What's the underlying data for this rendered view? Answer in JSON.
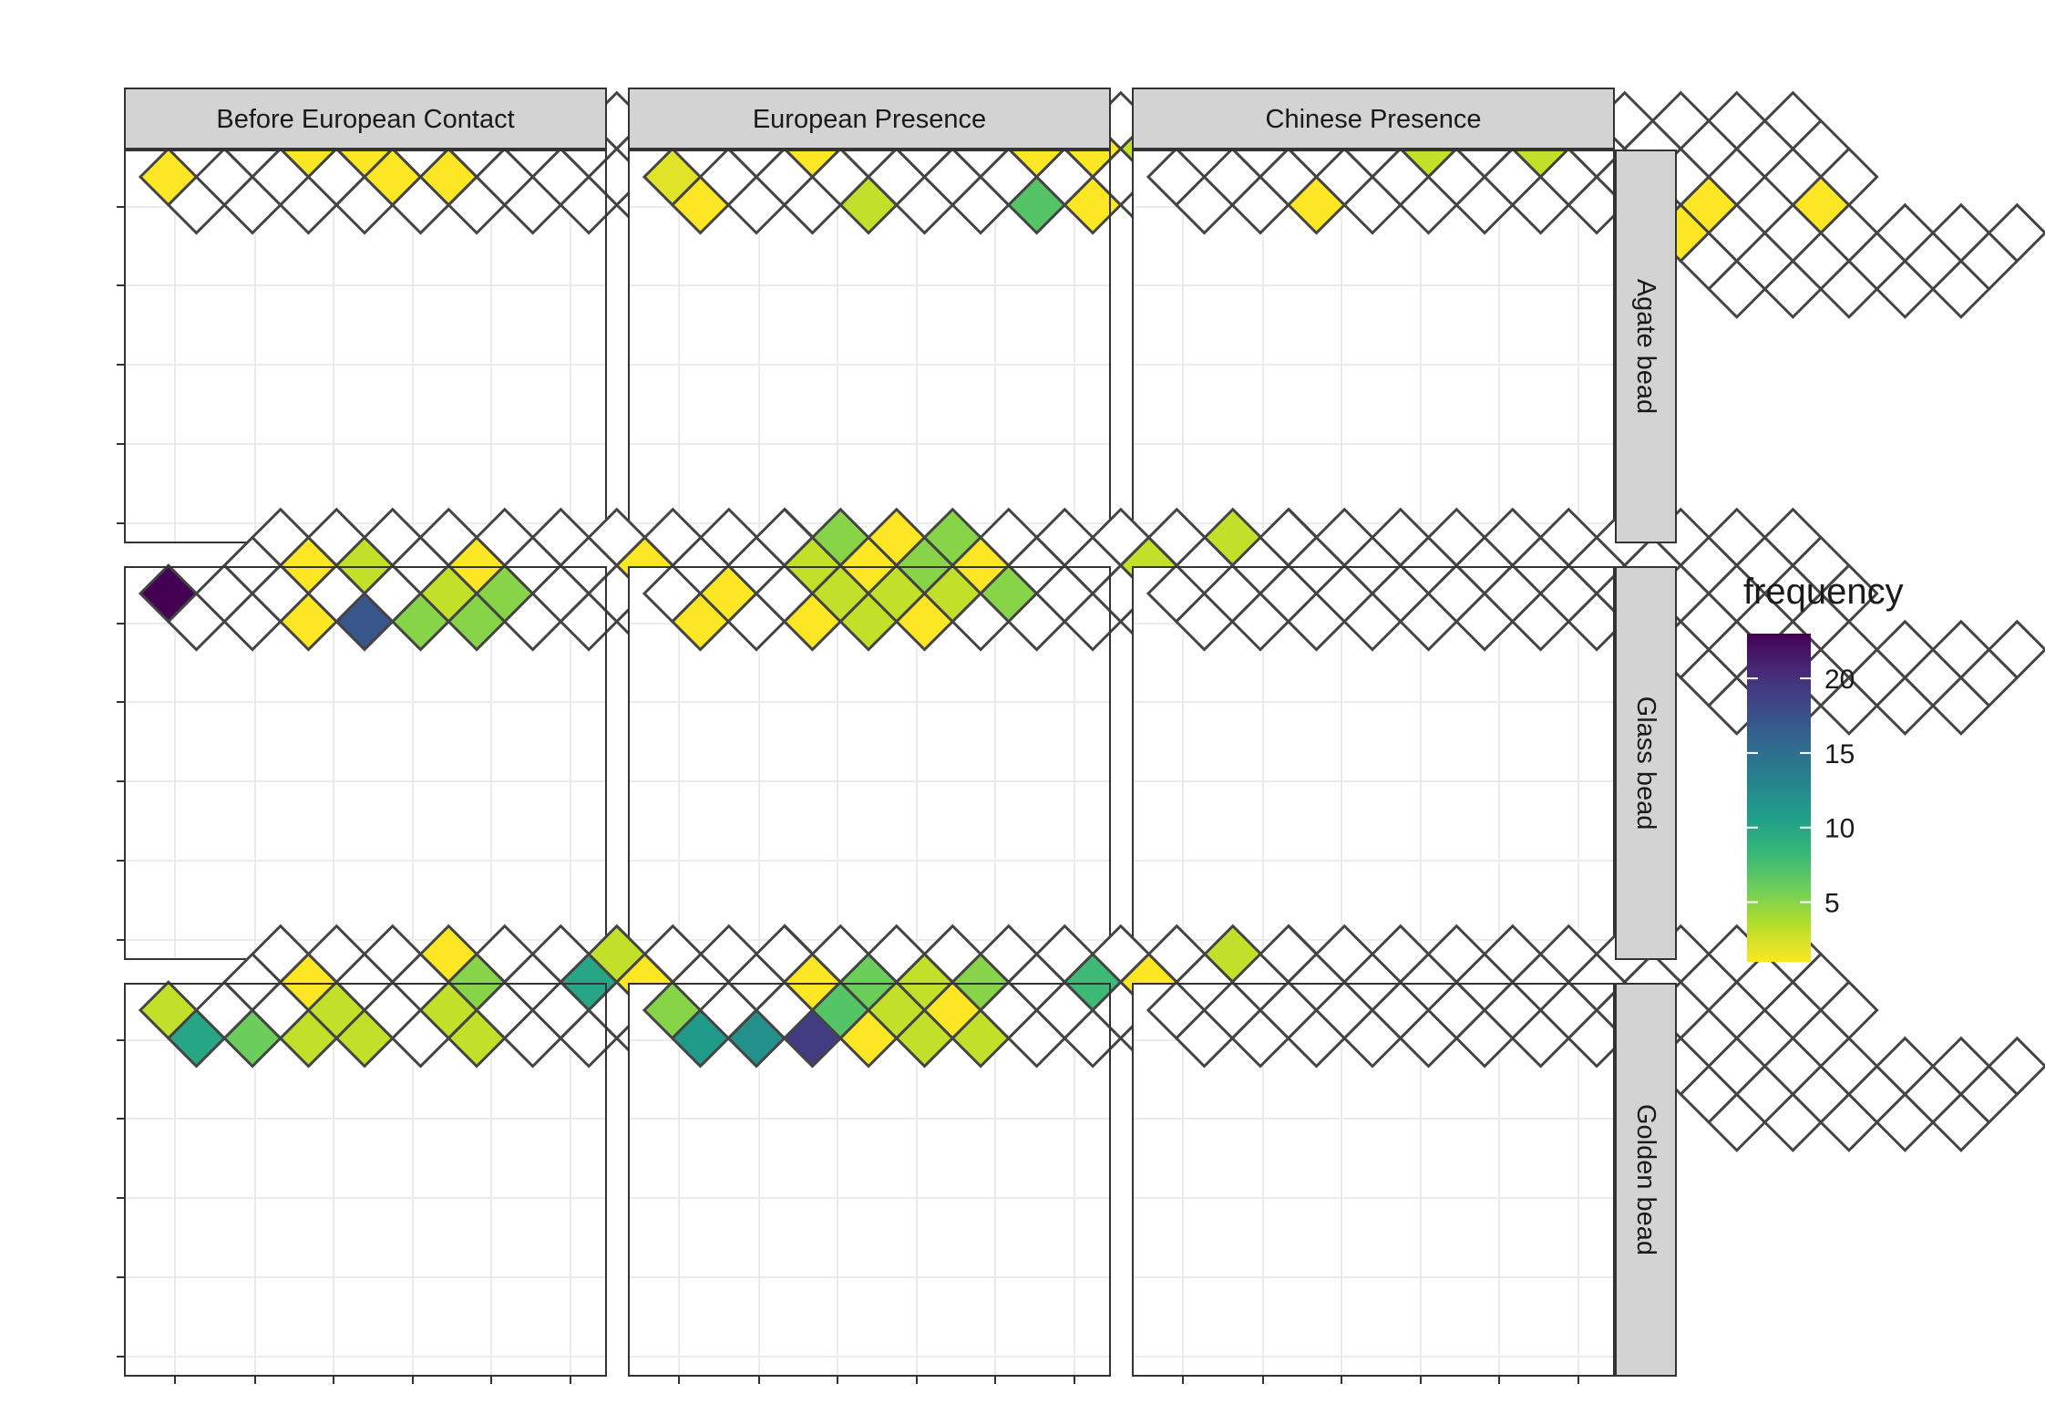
{
  "chart_data": {
    "type": "heatmap",
    "title": "",
    "xlabel": "",
    "ylabel": "",
    "facet_columns": [
      "Before European Contact",
      "European Presence",
      "Chinese Presence"
    ],
    "facet_rows": [
      "Agate bead",
      "Glass bead",
      "Golden bead"
    ],
    "grid": true,
    "legend": {
      "title": "frequency",
      "position": "right",
      "range": [
        1,
        23
      ],
      "ticks": [
        5,
        10,
        15,
        20
      ]
    },
    "colorscale": [
      "#fde725",
      "#b5de2b",
      "#6ece58",
      "#35b779",
      "#1f9e89",
      "#26828e",
      "#31688e",
      "#3e4989",
      "#482878",
      "#440154"
    ],
    "grid_cells": [
      [
        0,
        0
      ],
      [
        0,
        1
      ],
      [
        1,
        1
      ],
      [
        1,
        2
      ],
      [
        2,
        1
      ],
      [
        2,
        2
      ],
      [
        2,
        3
      ],
      [
        3,
        1
      ],
      [
        3,
        2
      ],
      [
        3,
        3
      ],
      [
        3,
        4
      ],
      [
        4,
        2
      ],
      [
        4,
        3
      ],
      [
        4,
        4
      ],
      [
        4,
        5
      ],
      [
        5,
        3
      ],
      [
        5,
        4
      ],
      [
        5,
        5
      ],
      [
        5,
        6
      ],
      [
        6,
        4
      ],
      [
        6,
        5
      ],
      [
        6,
        6
      ],
      [
        6,
        7
      ],
      [
        7,
        5
      ],
      [
        7,
        6
      ],
      [
        7,
        7
      ],
      [
        7,
        8
      ],
      [
        8,
        6
      ],
      [
        8,
        7
      ],
      [
        8,
        8
      ],
      [
        8,
        9
      ],
      [
        9,
        7
      ],
      [
        9,
        8
      ],
      [
        9,
        9
      ],
      [
        9,
        10
      ],
      [
        10,
        8
      ],
      [
        10,
        9
      ],
      [
        10,
        10
      ],
      [
        10,
        11
      ],
      [
        11,
        9
      ],
      [
        11,
        10
      ],
      [
        11,
        11
      ],
      [
        11,
        12
      ],
      [
        12,
        10
      ],
      [
        12,
        11
      ],
      [
        12,
        12
      ],
      [
        8,
        10
      ],
      [
        8,
        11
      ],
      [
        8,
        12
      ],
      [
        9,
        11
      ],
      [
        9,
        12
      ],
      [
        9,
        13
      ],
      [
        10,
        12
      ],
      [
        10,
        13
      ],
      [
        10,
        14
      ],
      [
        11,
        13
      ],
      [
        11,
        14
      ],
      [
        11,
        15
      ],
      [
        12,
        14
      ],
      [
        12,
        15
      ],
      [
        12,
        16
      ],
      [
        13,
        15
      ],
      [
        13,
        16
      ],
      [
        14,
        16
      ]
    ],
    "panels": [
      {
        "column": "Before European Contact",
        "row": "Agate bead",
        "cells": [
          {
            "cell": [
              0,
              0
            ],
            "frequency": 1
          },
          {
            "cell": [
              3,
              2
            ],
            "frequency": 1
          },
          {
            "cell": [
              4,
              3
            ],
            "frequency": 1
          },
          {
            "cell": [
              4,
              4
            ],
            "frequency": 1
          },
          {
            "cell": [
              5,
              5
            ],
            "frequency": 1
          },
          {
            "cell": [
              10,
              12
            ],
            "frequency": 1
          },
          {
            "cell": [
              11,
              13
            ],
            "frequency": 1
          },
          {
            "cell": [
              12,
              14
            ],
            "frequency": 1
          },
          {
            "cell": [
              8,
              12
            ],
            "frequency": 1
          }
        ]
      },
      {
        "column": "European Presence",
        "row": "Agate bead",
        "cells": [
          {
            "cell": [
              0,
              0
            ],
            "frequency": 2
          },
          {
            "cell": [
              0,
              1
            ],
            "frequency": 1
          },
          {
            "cell": [
              3,
              2
            ],
            "frequency": 1
          },
          {
            "cell": [
              4,
              2
            ],
            "frequency": 1
          },
          {
            "cell": [
              3,
              4
            ],
            "frequency": 3
          },
          {
            "cell": [
              7,
              6
            ],
            "frequency": 1
          },
          {
            "cell": [
              8,
              7
            ],
            "frequency": 1
          },
          {
            "cell": [
              6,
              7
            ],
            "frequency": 7
          },
          {
            "cell": [
              7,
              8
            ],
            "frequency": 1
          },
          {
            "cell": [
              7,
              10
            ],
            "frequency": 1
          },
          {
            "cell": [
              9,
              8
            ],
            "frequency": 3
          },
          {
            "cell": [
              8,
              11
            ],
            "frequency": 1
          },
          {
            "cell": [
              11,
              9
            ],
            "frequency": 1
          },
          {
            "cell": [
              11,
              10
            ],
            "frequency": 1
          },
          {
            "cell": [
              12,
              10
            ],
            "frequency": 3
          },
          {
            "cell": [
              12,
              11
            ],
            "frequency": 1
          }
        ]
      },
      {
        "column": "Chinese Presence",
        "row": "Agate bead",
        "cells": [
          {
            "cell": [
              2,
              3
            ],
            "frequency": 1
          },
          {
            "cell": [
              5,
              4
            ],
            "frequency": 3
          },
          {
            "cell": [
              6,
              4
            ],
            "frequency": 1
          },
          {
            "cell": [
              4,
              6
            ],
            "frequency": 1
          },
          {
            "cell": [
              7,
              6
            ],
            "frequency": 3
          },
          {
            "cell": [
              8,
              10
            ],
            "frequency": 1
          },
          {
            "cell": [
              9,
              10
            ],
            "frequency": 1
          },
          {
            "cell": [
              11,
              12
            ],
            "frequency": 1
          }
        ]
      },
      {
        "column": "Before European Contact",
        "row": "Glass bead",
        "cells": [
          {
            "cell": [
              0,
              0
            ],
            "frequency": 23
          },
          {
            "cell": [
              3,
              2
            ],
            "frequency": 1
          },
          {
            "cell": [
              2,
              3
            ],
            "frequency": 1
          },
          {
            "cell": [
              4,
              3
            ],
            "frequency": 3
          },
          {
            "cell": [
              3,
              4
            ],
            "frequency": 17
          },
          {
            "cell": [
              3,
              5
            ],
            "frequency": 5
          },
          {
            "cell": [
              4,
              5
            ],
            "frequency": 5
          },
          {
            "cell": [
              5,
              5
            ],
            "frequency": 3
          },
          {
            "cell": [
              6,
              5
            ],
            "frequency": 1
          },
          {
            "cell": [
              4,
              6
            ],
            "frequency": 1
          },
          {
            "cell": [
              5,
              6
            ],
            "frequency": 5
          },
          {
            "cell": [
              6,
              6
            ],
            "frequency": 5
          },
          {
            "cell": [
              9,
              8
            ],
            "frequency": 1
          },
          {
            "cell": [
              9,
              9
            ],
            "frequency": 1
          },
          {
            "cell": [
              10,
              10
            ],
            "frequency": 1
          },
          {
            "cell": [
              9,
              11
            ],
            "frequency": 1
          },
          {
            "cell": [
              9,
              12
            ],
            "frequency": 1
          },
          {
            "cell": [
              9,
              13
            ],
            "frequency": 3
          },
          {
            "cell": [
              8,
              12
            ],
            "frequency": 1
          }
        ]
      },
      {
        "column": "European Presence",
        "row": "Glass bead",
        "cells": [
          {
            "cell": [
              0,
              1
            ],
            "frequency": 1
          },
          {
            "cell": [
              1,
              1
            ],
            "frequency": 1
          },
          {
            "cell": [
              2,
              3
            ],
            "frequency": 1
          },
          {
            "cell": [
              3,
              2
            ],
            "frequency": 3
          },
          {
            "cell": [
              4,
              2
            ],
            "frequency": 5
          },
          {
            "cell": [
              3,
              3
            ],
            "frequency": 3
          },
          {
            "cell": [
              3,
              4
            ],
            "frequency": 3
          },
          {
            "cell": [
              4,
              3
            ],
            "frequency": 1
          },
          {
            "cell": [
              4,
              4
            ],
            "frequency": 3
          },
          {
            "cell": [
              5,
              3
            ],
            "frequency": 1
          },
          {
            "cell": [
              5,
              4
            ],
            "frequency": 5
          },
          {
            "cell": [
              6,
              4
            ],
            "frequency": 5
          },
          {
            "cell": [
              4,
              5
            ],
            "frequency": 1
          },
          {
            "cell": [
              5,
              5
            ],
            "frequency": 3
          },
          {
            "cell": [
              6,
              5
            ],
            "frequency": 1
          },
          {
            "cell": [
              4,
              6
            ],
            "frequency": 3
          },
          {
            "cell": [
              6,
              6
            ],
            "frequency": 5
          },
          {
            "cell": [
              5,
              7
            ],
            "frequency": 5
          },
          {
            "cell": [
              9,
              8
            ],
            "frequency": 3
          },
          {
            "cell": [
              12,
              10
            ],
            "frequency": 5
          },
          {
            "cell": [
              11,
              10
            ],
            "frequency": 3
          },
          {
            "cell": [
              11,
              9
            ],
            "frequency": 3
          },
          {
            "cell": [
              12,
              11
            ],
            "frequency": 5
          },
          {
            "cell": [
              10,
              11
            ],
            "frequency": 1
          },
          {
            "cell": [
              11,
              12
            ],
            "frequency": 1
          }
        ]
      },
      {
        "column": "Chinese Presence",
        "row": "Glass bead",
        "cells": [
          {
            "cell": [
              3,
              5
            ],
            "frequency": 1
          }
        ]
      },
      {
        "column": "Before European Contact",
        "row": "Golden bead",
        "cells": [
          {
            "cell": [
              0,
              0
            ],
            "frequency": 3
          },
          {
            "cell": [
              0,
              1
            ],
            "frequency": 10
          },
          {
            "cell": [
              1,
              2
            ],
            "frequency": 6
          },
          {
            "cell": [
              3,
              2
            ],
            "frequency": 1
          },
          {
            "cell": [
              3,
              3
            ],
            "frequency": 3
          },
          {
            "cell": [
              2,
              3
            ],
            "frequency": 3
          },
          {
            "cell": [
              3,
              4
            ],
            "frequency": 3
          },
          {
            "cell": [
              6,
              4
            ],
            "frequency": 1
          },
          {
            "cell": [
              6,
              5
            ],
            "frequency": 5
          },
          {
            "cell": [
              5,
              5
            ],
            "frequency": 3
          },
          {
            "cell": [
              4,
              6
            ],
            "frequency": 1
          },
          {
            "cell": [
              5,
              6
            ],
            "frequency": 3
          },
          {
            "cell": [
              9,
              7
            ],
            "frequency": 3
          },
          {
            "cell": [
              8,
              7
            ],
            "frequency": 10
          },
          {
            "cell": [
              9,
              8
            ],
            "frequency": 1
          },
          {
            "cell": [
              9,
              9
            ],
            "frequency": 3
          },
          {
            "cell": [
              11,
              12
            ],
            "frequency": 1
          },
          {
            "cell": [
              10,
              11
            ],
            "frequency": 3
          },
          {
            "cell": [
              10,
              12
            ],
            "frequency": 3
          },
          {
            "cell": [
              11,
              13
            ],
            "frequency": 3
          },
          {
            "cell": [
              12,
              12
            ],
            "frequency": 1
          },
          {
            "cell": [
              11,
              11
            ],
            "frequency": 1
          }
        ]
      },
      {
        "column": "European Presence",
        "row": "Golden bead",
        "cells": [
          {
            "cell": [
              0,
              0
            ],
            "frequency": 5
          },
          {
            "cell": [
              0,
              1
            ],
            "frequency": 11
          },
          {
            "cell": [
              1,
              2
            ],
            "frequency": 12
          },
          {
            "cell": [
              2,
              3
            ],
            "frequency": 19
          },
          {
            "cell": [
              3,
              2
            ],
            "frequency": 1
          },
          {
            "cell": [
              4,
              3
            ],
            "frequency": 6
          },
          {
            "cell": [
              3,
              3
            ],
            "frequency": 7
          },
          {
            "cell": [
              2,
              4
            ],
            "frequency": 3
          },
          {
            "cell": [
              3,
              4
            ],
            "frequency": 1
          },
          {
            "cell": [
              4,
              4
            ],
            "frequency": 3
          },
          {
            "cell": [
              5,
              4
            ],
            "frequency": 3
          },
          {
            "cell": [
              3,
              5
            ],
            "frequency": 3
          },
          {
            "cell": [
              4,
              5
            ],
            "frequency": 3
          },
          {
            "cell": [
              5,
              5
            ],
            "frequency": 1
          },
          {
            "cell": [
              6,
              5
            ],
            "frequency": 5
          },
          {
            "cell": [
              4,
              6
            ],
            "frequency": 1
          },
          {
            "cell": [
              5,
              6
            ],
            "frequency": 3
          },
          {
            "cell": [
              4,
              7
            ],
            "frequency": 3
          },
          {
            "cell": [
              5,
              7
            ],
            "frequency": 12
          },
          {
            "cell": [
              5,
              8
            ],
            "frequency": 3
          },
          {
            "cell": [
              8,
              7
            ],
            "frequency": 8
          },
          {
            "cell": [
              9,
              8
            ],
            "frequency": 1
          },
          {
            "cell": [
              11,
              9
            ],
            "frequency": 3
          }
        ]
      },
      {
        "column": "Chinese Presence",
        "row": "Golden bead",
        "cells": [
          {
            "cell": [
              3,
              5
            ],
            "frequency": 1
          },
          {
            "cell": [
              3,
              6
            ],
            "frequency": 1
          }
        ]
      }
    ]
  }
}
